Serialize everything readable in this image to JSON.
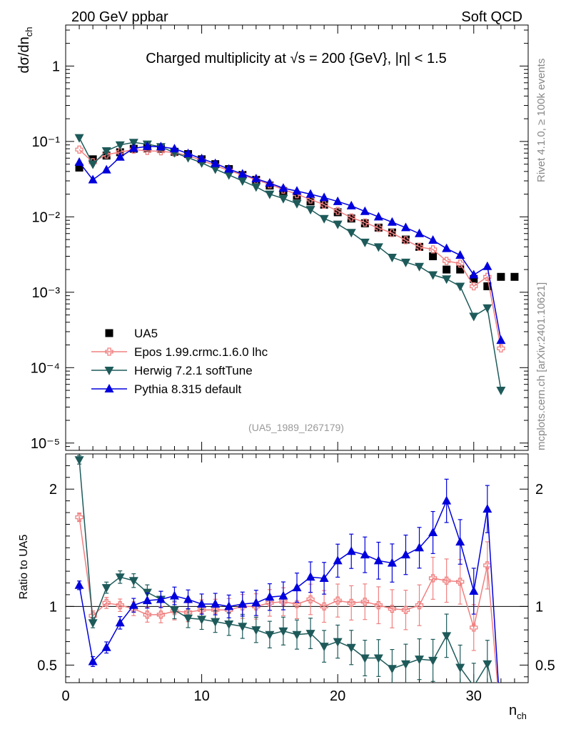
{
  "header": {
    "left": "200 GeV ppbar",
    "right": "Soft QCD"
  },
  "side_text": {
    "rivet": "Rivet 4.1.0, ≥ 100k events",
    "mcplots": "mcplots.cern.ch [arXiv:2401.10621]"
  },
  "chart_data": [
    {
      "type": "scatter",
      "title": "Charged multiplicity at √s = 200 {GeV}, |η| < 1.5",
      "ylabel": "dσ/dn_ch",
      "yscale": "log",
      "ylim": [
        8e-06,
        3.5
      ],
      "xlim": [
        0,
        34
      ],
      "yticks": [
        {
          "v": 1,
          "label": "1"
        },
        {
          "v": 0.1,
          "label": "10⁻¹"
        },
        {
          "v": 0.01,
          "label": "10⁻²"
        },
        {
          "v": 0.001,
          "label": "10⁻³"
        },
        {
          "v": 0.0001,
          "label": "10⁻⁴"
        },
        {
          "v": 1e-05,
          "label": "10⁻⁵"
        }
      ],
      "analysis_id": "(UA5_1989_I267179)",
      "x": [
        1,
        2,
        3,
        4,
        5,
        6,
        7,
        8,
        9,
        10,
        11,
        12,
        13,
        14,
        15,
        16,
        17,
        18,
        19,
        20,
        21,
        22,
        23,
        24,
        25,
        26,
        27,
        28,
        29,
        30,
        31,
        32,
        33
      ],
      "series": [
        {
          "name": "UA5",
          "color": "#000000",
          "marker": "square",
          "values": [
            0.045,
            0.058,
            0.065,
            0.072,
            0.08,
            0.082,
            0.08,
            0.073,
            0.068,
            0.058,
            0.05,
            0.043,
            0.036,
            0.031,
            0.026,
            0.022,
            0.019,
            0.016,
            0.0145,
            0.0115,
            0.0095,
            0.0082,
            0.0072,
            0.0062,
            0.005,
            0.004,
            0.003,
            0.002,
            0.002,
            0.0015,
            0.0012,
            0.0016,
            0.0016
          ]
        },
        {
          "name": "Epos 1.99.crmc.1.6.0 lhc",
          "color": "#f08080",
          "marker": "cross",
          "values": [
            0.078,
            0.053,
            0.067,
            0.072,
            0.078,
            0.075,
            0.074,
            0.071,
            0.065,
            0.056,
            0.048,
            0.041,
            0.036,
            0.031,
            0.027,
            0.023,
            0.02,
            0.017,
            0.0145,
            0.012,
            0.0098,
            0.0084,
            0.0071,
            0.0061,
            0.0049,
            0.004,
            0.0037,
            0.0026,
            0.0024,
            0.0012,
            0.0016,
            0.00018
          ]
        },
        {
          "name": "Herwig 7.2.1 softTune",
          "color": "#1e5a5a",
          "marker": "triangle-down",
          "values": [
            0.112,
            0.05,
            0.075,
            0.09,
            0.097,
            0.092,
            0.085,
            0.071,
            0.061,
            0.052,
            0.043,
            0.036,
            0.03,
            0.025,
            0.02,
            0.0175,
            0.015,
            0.0125,
            0.0095,
            0.008,
            0.0062,
            0.0046,
            0.004,
            0.0029,
            0.0025,
            0.0022,
            0.0017,
            0.0015,
            0.0012,
            0.00048,
            0.00062,
            5e-05
          ]
        },
        {
          "name": "Pythia 8.315 default",
          "color": "#0000dd",
          "marker": "triangle-up",
          "values": [
            0.053,
            0.031,
            0.042,
            0.062,
            0.081,
            0.086,
            0.085,
            0.08,
            0.069,
            0.059,
            0.051,
            0.043,
            0.037,
            0.032,
            0.028,
            0.024,
            0.022,
            0.02,
            0.018,
            0.016,
            0.014,
            0.0118,
            0.01,
            0.0085,
            0.0072,
            0.006,
            0.0049,
            0.0038,
            0.0031,
            0.0017,
            0.0022,
            0.00023
          ]
        }
      ]
    },
    {
      "type": "line",
      "ylabel": "Ratio to UA5",
      "xlabel": "n_ch",
      "xlim": [
        0,
        34
      ],
      "ylim": [
        0.35,
        2.3
      ],
      "xticks": [
        0,
        10,
        20,
        30
      ],
      "yticks": [
        0.5,
        1,
        2
      ],
      "x": [
        1,
        2,
        3,
        4,
        5,
        6,
        7,
        8,
        9,
        10,
        11,
        12,
        13,
        14,
        15,
        16,
        17,
        18,
        19,
        20,
        21,
        22,
        23,
        24,
        25,
        26,
        27,
        28,
        29,
        30,
        31,
        32
      ],
      "series": [
        {
          "name": "Epos 1.99.crmc.1.6.0 lhc",
          "color": "#f08080",
          "marker": "cross",
          "values": [
            1.76,
            0.92,
            1.03,
            1.01,
            0.98,
            0.93,
            0.93,
            0.96,
            0.95,
            0.97,
            0.97,
            0.97,
            1.0,
            1.0,
            1.03,
            1.04,
            1.02,
            1.06,
            1.0,
            1.05,
            1.03,
            1.04,
            1.01,
            0.98,
            0.97,
            1.01,
            1.24,
            1.22,
            1.21,
            0.82,
            1.35,
            0.0
          ]
        },
        {
          "name": "Herwig 7.2.1 softTune",
          "color": "#1e5a5a",
          "marker": "triangle-down",
          "values": [
            2.25,
            0.86,
            1.16,
            1.25,
            1.22,
            1.12,
            1.06,
            0.97,
            0.9,
            0.89,
            0.87,
            0.85,
            0.83,
            0.8,
            0.76,
            0.79,
            0.76,
            0.77,
            0.66,
            0.7,
            0.65,
            0.56,
            0.56,
            0.47,
            0.51,
            0.55,
            0.54,
            0.75,
            0.48,
            0.32,
            0.51,
            0.0
          ]
        },
        {
          "name": "Pythia 8.315 default",
          "color": "#0000dd",
          "marker": "triangle-up",
          "values": [
            1.18,
            0.53,
            0.65,
            0.86,
            1.01,
            1.05,
            1.06,
            1.09,
            1.06,
            1.02,
            1.02,
            1.0,
            1.02,
            1.03,
            1.08,
            1.09,
            1.16,
            1.25,
            1.24,
            1.39,
            1.47,
            1.44,
            1.39,
            1.37,
            1.44,
            1.5,
            1.63,
            1.9,
            1.55,
            1.13,
            1.83,
            0.0
          ]
        }
      ]
    }
  ]
}
